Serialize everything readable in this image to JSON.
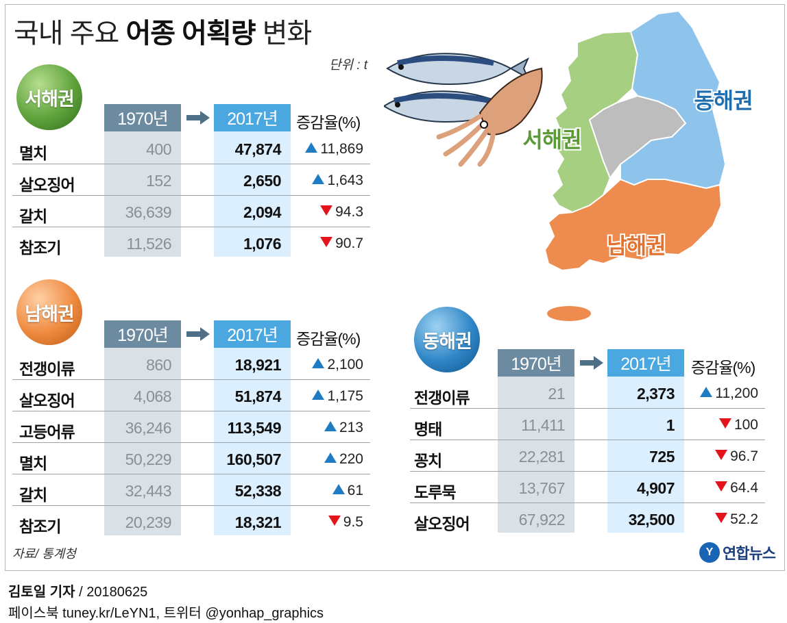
{
  "title": {
    "light": "국내 주요",
    "bold": "어종 어획량",
    "tail": "변화"
  },
  "unit": "단위 : t",
  "headers": {
    "year_a": "1970년",
    "year_b": "2017년",
    "rate": "증감율(%)"
  },
  "map_labels": {
    "east": "동해권",
    "west": "서해권",
    "south": "남해권"
  },
  "source": "자료/ 통계청",
  "logo": {
    "mark": "Y",
    "text": "연합뉴스"
  },
  "credit": {
    "author": "김토일 기자",
    "date": " / 20180625",
    "sns": "페이스북 tuney.kr/LeYN1, 트위터 @yonhap_graphics"
  },
  "colors": {
    "up": "#1f7cc3",
    "down": "#e3141c",
    "west": "#a7cf82",
    "east": "#8ec4ec",
    "south": "#ee8c4f",
    "center": "#bdbdbd"
  },
  "chart_data": [
    {
      "type": "table",
      "region": "서해권",
      "columns": [
        "1970년",
        "2017년",
        "증감율(%)"
      ],
      "rows": [
        {
          "species": "멸치",
          "y1970": "400",
          "y2017": "47,874",
          "dir": "up",
          "rate": "11,869"
        },
        {
          "species": "살오징어",
          "y1970": "152",
          "y2017": "2,650",
          "dir": "up",
          "rate": "1,643"
        },
        {
          "species": "갈치",
          "y1970": "36,639",
          "y2017": "2,094",
          "dir": "down",
          "rate": "94.3"
        },
        {
          "species": "참조기",
          "y1970": "11,526",
          "y2017": "1,076",
          "dir": "down",
          "rate": "90.7"
        }
      ]
    },
    {
      "type": "table",
      "region": "남해권",
      "columns": [
        "1970년",
        "2017년",
        "증감율(%)"
      ],
      "rows": [
        {
          "species": "전갱이류",
          "y1970": "860",
          "y2017": "18,921",
          "dir": "up",
          "rate": "2,100"
        },
        {
          "species": "살오징어",
          "y1970": "4,068",
          "y2017": "51,874",
          "dir": "up",
          "rate": "1,175"
        },
        {
          "species": "고등어류",
          "y1970": "36,246",
          "y2017": "113,549",
          "dir": "up",
          "rate": "213"
        },
        {
          "species": "멸치",
          "y1970": "50,229",
          "y2017": "160,507",
          "dir": "up",
          "rate": "220"
        },
        {
          "species": "갈치",
          "y1970": "32,443",
          "y2017": "52,338",
          "dir": "up",
          "rate": "61"
        },
        {
          "species": "참조기",
          "y1970": "20,239",
          "y2017": "18,321",
          "dir": "down",
          "rate": "9.5"
        }
      ]
    },
    {
      "type": "table",
      "region": "동해권",
      "columns": [
        "1970년",
        "2017년",
        "증감율(%)"
      ],
      "rows": [
        {
          "species": "전갱이류",
          "y1970": "21",
          "y2017": "2,373",
          "dir": "up",
          "rate": "11,200"
        },
        {
          "species": "명태",
          "y1970": "11,411",
          "y2017": "1",
          "dir": "down",
          "rate": "100"
        },
        {
          "species": "꽁치",
          "y1970": "22,281",
          "y2017": "725",
          "dir": "down",
          "rate": "96.7"
        },
        {
          "species": "도루묵",
          "y1970": "13,767",
          "y2017": "4,907",
          "dir": "down",
          "rate": "64.4"
        },
        {
          "species": "살오징어",
          "y1970": "67,922",
          "y2017": "32,500",
          "dir": "down",
          "rate": "52.2"
        }
      ]
    }
  ]
}
